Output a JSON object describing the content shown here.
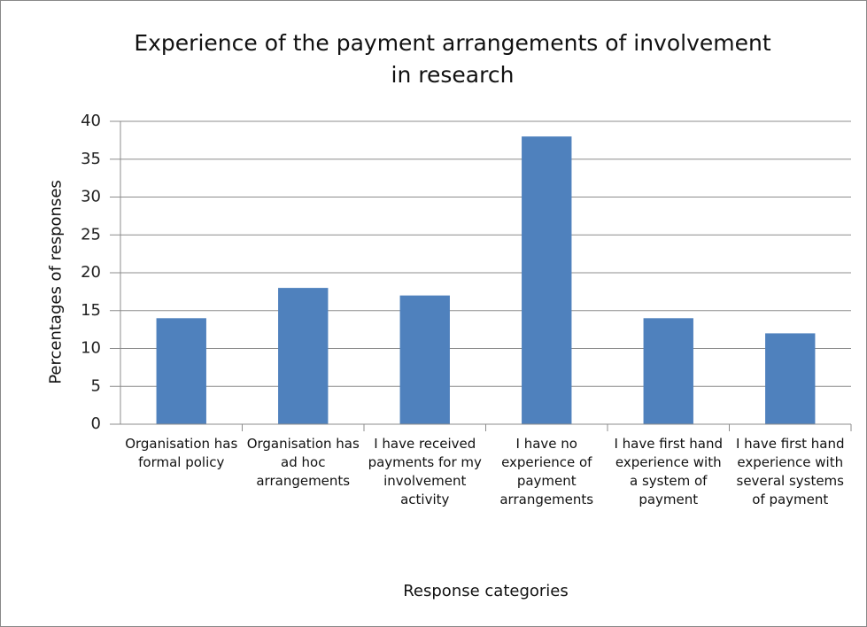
{
  "chart_data": {
    "type": "bar",
    "title": "Experience of the payment arrangements of involvement in research",
    "x_label": "Response categories",
    "y_label": "Percentages of responses",
    "categories": [
      "Organisation has formal policy",
      "Organisation has ad hoc arrangements",
      "I have received payments for my involvement activity",
      "I have no experience of payment arrangements",
      "I have first hand experience with a system of payment",
      "I have first hand experience with several systems of payment"
    ],
    "values": [
      14,
      18,
      17,
      38,
      14,
      12
    ],
    "color": "#4f81bd",
    "ylim": [
      0,
      40
    ],
    "yticks": [
      0,
      5,
      10,
      15,
      20,
      25,
      30,
      35,
      40
    ],
    "grid": true
  }
}
